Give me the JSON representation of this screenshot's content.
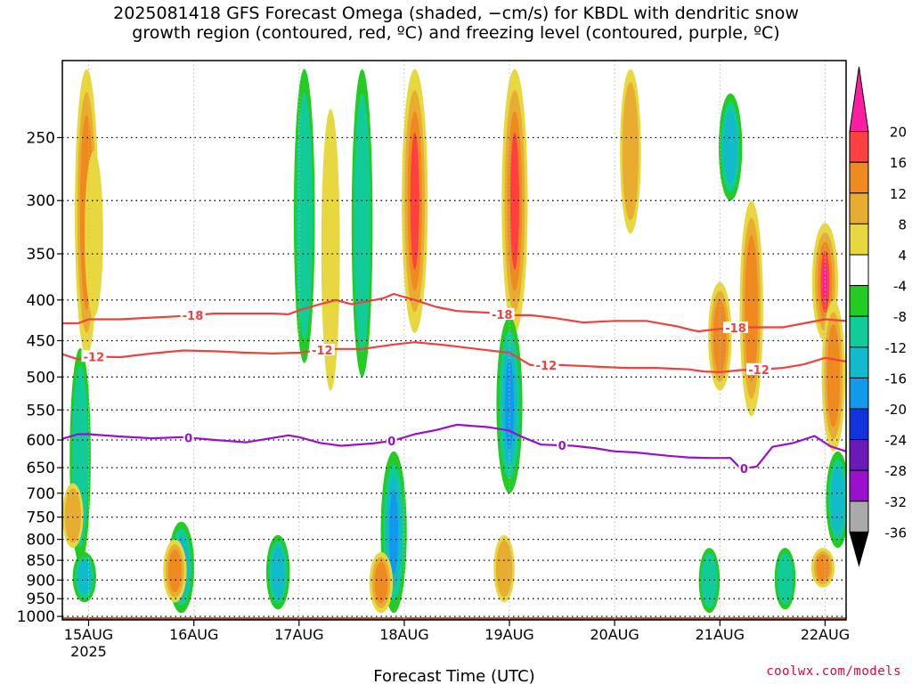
{
  "title": {
    "line1": "2025081418 GFS Forecast Omega (shaded, −cm/s) for KBDL with dendritic snow",
    "line2": "growth region (contoured, red, ºC) and freezing level (contoured, purple, ºC)"
  },
  "credit": "coolwx.com/models",
  "chart_data": {
    "type": "heatmap",
    "xlabel": "Forecast Time (UTC)",
    "ylabel": "",
    "x_ticks": [
      "15AUG",
      "16AUG",
      "17AUG",
      "18AUG",
      "19AUG",
      "20AUG",
      "21AUG",
      "22AUG"
    ],
    "x_tick_sublabel": "2025",
    "x_range_days": [
      14.75,
      22.2
    ],
    "y_ticks": [
      250,
      300,
      350,
      400,
      450,
      500,
      550,
      600,
      650,
      700,
      750,
      800,
      850,
      900,
      950,
      1000
    ],
    "y_range_hpa": [
      200,
      1010
    ],
    "y_scale": "log (pressure, reversed)",
    "grid": "dotted",
    "colorbar": {
      "labels": [
        "20",
        "16",
        "12",
        "8",
        "4",
        "-4",
        "-8",
        "-12",
        "-16",
        "-20",
        "-24",
        "-28",
        "-32",
        "-36"
      ],
      "colors": [
        "#ff1ea0",
        "#ff4040",
        "#ee8a20",
        "#e8ad30",
        "#e8d840",
        "#ffffff",
        "#22cc22",
        "#11cc99",
        "#11bbcc",
        "#1199ee",
        "#1133dd",
        "#6a1ab8",
        "#9b0fcf",
        "#aaaaaa",
        "#000000"
      ]
    },
    "contours": [
      {
        "label": "-18",
        "color": "#f04040",
        "label_positions_day": [
          15.99,
          18.93,
          21.15
        ],
        "days": [
          14.75,
          14.9,
          15.0,
          15.3,
          15.6,
          15.9,
          16.2,
          16.5,
          16.75,
          16.9,
          17.0,
          17.2,
          17.35,
          17.5,
          17.8,
          17.9,
          18.1,
          18.3,
          18.5,
          18.8,
          19.0,
          19.2,
          19.4,
          19.7,
          20.0,
          20.3,
          20.6,
          20.75,
          20.8,
          21.0,
          21.2,
          21.4,
          21.6,
          21.8,
          22.0,
          22.2
        ],
        "hpa": [
          428,
          428,
          423,
          423,
          421,
          419,
          416,
          416,
          416,
          417,
          412,
          405,
          400,
          405,
          398,
          393,
          400,
          408,
          413,
          415,
          418,
          418,
          421,
          427,
          425,
          425,
          432,
          437,
          438,
          435,
          433,
          433,
          433,
          428,
          423,
          425
        ]
      },
      {
        "label": "-12",
        "color": "#f04040",
        "label_positions_day": [
          15.05,
          17.22,
          19.35,
          21.37
        ],
        "days": [
          14.75,
          14.9,
          15.0,
          15.3,
          15.6,
          15.9,
          16.2,
          16.5,
          16.75,
          17.0,
          17.3,
          17.6,
          17.9,
          18.1,
          18.4,
          18.75,
          19.0,
          19.2,
          19.5,
          19.8,
          20.1,
          20.4,
          20.7,
          20.85,
          21.0,
          21.2,
          21.4,
          21.6,
          21.8,
          22.0,
          22.2
        ],
        "hpa": [
          468,
          475,
          471,
          472,
          467,
          463,
          464,
          466,
          467,
          466,
          461,
          461,
          455,
          452,
          456,
          462,
          466,
          483,
          483,
          485,
          487,
          487,
          489,
          492,
          493,
          490,
          489,
          487,
          482,
          473,
          478
        ]
      },
      {
        "label": "0",
        "color": "#9b0fcf",
        "label_positions_day": [
          15.95,
          17.88,
          19.5,
          21.23
        ],
        "days": [
          14.75,
          14.9,
          15.0,
          15.3,
          15.6,
          15.9,
          16.2,
          16.5,
          16.7,
          16.9,
          17.0,
          17.2,
          17.4,
          17.7,
          17.9,
          18.1,
          18.3,
          18.5,
          18.8,
          19.0,
          19.1,
          19.3,
          19.6,
          19.8,
          20.0,
          20.2,
          20.5,
          20.7,
          20.9,
          21.1,
          21.2,
          21.35,
          21.5,
          21.7,
          21.9,
          22.05,
          22.2
        ],
        "hpa": [
          598,
          590,
          590,
          594,
          597,
          595,
          600,
          604,
          598,
          592,
          595,
          605,
          610,
          606,
          601,
          590,
          583,
          574,
          578,
          584,
          593,
          608,
          610,
          614,
          620,
          622,
          628,
          631,
          632,
          632,
          652,
          648,
          612,
          605,
          593,
          611,
          620
        ]
      }
    ],
    "omega_regions": [
      {
        "day": 14.98,
        "p_top": 205,
        "p_bot": 470,
        "value": 12
      },
      {
        "day": 15.05,
        "p_top": 260,
        "p_bot": 420,
        "value": 4
      },
      {
        "day": 14.92,
        "p_top": 460,
        "p_bot": 860,
        "value": -8
      },
      {
        "day": 14.85,
        "p_top": 680,
        "p_bot": 820,
        "value": 8
      },
      {
        "day": 14.96,
        "p_top": 830,
        "p_bot": 960,
        "value": -12
      },
      {
        "day": 15.88,
        "p_top": 760,
        "p_bot": 990,
        "value": -16
      },
      {
        "day": 15.82,
        "p_top": 800,
        "p_bot": 960,
        "value": 12
      },
      {
        "day": 16.8,
        "p_top": 790,
        "p_bot": 980,
        "value": -12
      },
      {
        "day": 17.05,
        "p_top": 205,
        "p_bot": 480,
        "value": -8
      },
      {
        "day": 17.3,
        "p_top": 230,
        "p_bot": 520,
        "value": 4
      },
      {
        "day": 17.6,
        "p_top": 205,
        "p_bot": 500,
        "value": -8
      },
      {
        "day": 18.1,
        "p_top": 205,
        "p_bot": 440,
        "value": 16
      },
      {
        "day": 17.9,
        "p_top": 620,
        "p_bot": 990,
        "value": -16
      },
      {
        "day": 17.78,
        "p_top": 830,
        "p_bot": 990,
        "value": 12
      },
      {
        "day": 19.05,
        "p_top": 205,
        "p_bot": 440,
        "value": 16
      },
      {
        "day": 19.0,
        "p_top": 420,
        "p_bot": 700,
        "value": -16
      },
      {
        "day": 18.95,
        "p_top": 790,
        "p_bot": 960,
        "value": 8
      },
      {
        "day": 20.15,
        "p_top": 205,
        "p_bot": 330,
        "value": 8
      },
      {
        "day": 20.9,
        "p_top": 820,
        "p_bot": 990,
        "value": -8
      },
      {
        "day": 21.1,
        "p_top": 220,
        "p_bot": 300,
        "value": -12
      },
      {
        "day": 21.3,
        "p_top": 300,
        "p_bot": 560,
        "value": 12
      },
      {
        "day": 21.0,
        "p_top": 380,
        "p_bot": 520,
        "value": 12
      },
      {
        "day": 22.0,
        "p_top": 320,
        "p_bot": 450,
        "value": 20
      },
      {
        "day": 22.08,
        "p_top": 400,
        "p_bot": 620,
        "value": 12
      },
      {
        "day": 22.12,
        "p_top": 620,
        "p_bot": 820,
        "value": -12
      },
      {
        "day": 21.62,
        "p_top": 820,
        "p_bot": 980,
        "value": -8
      },
      {
        "day": 21.98,
        "p_top": 820,
        "p_bot": 920,
        "value": 12
      }
    ]
  }
}
